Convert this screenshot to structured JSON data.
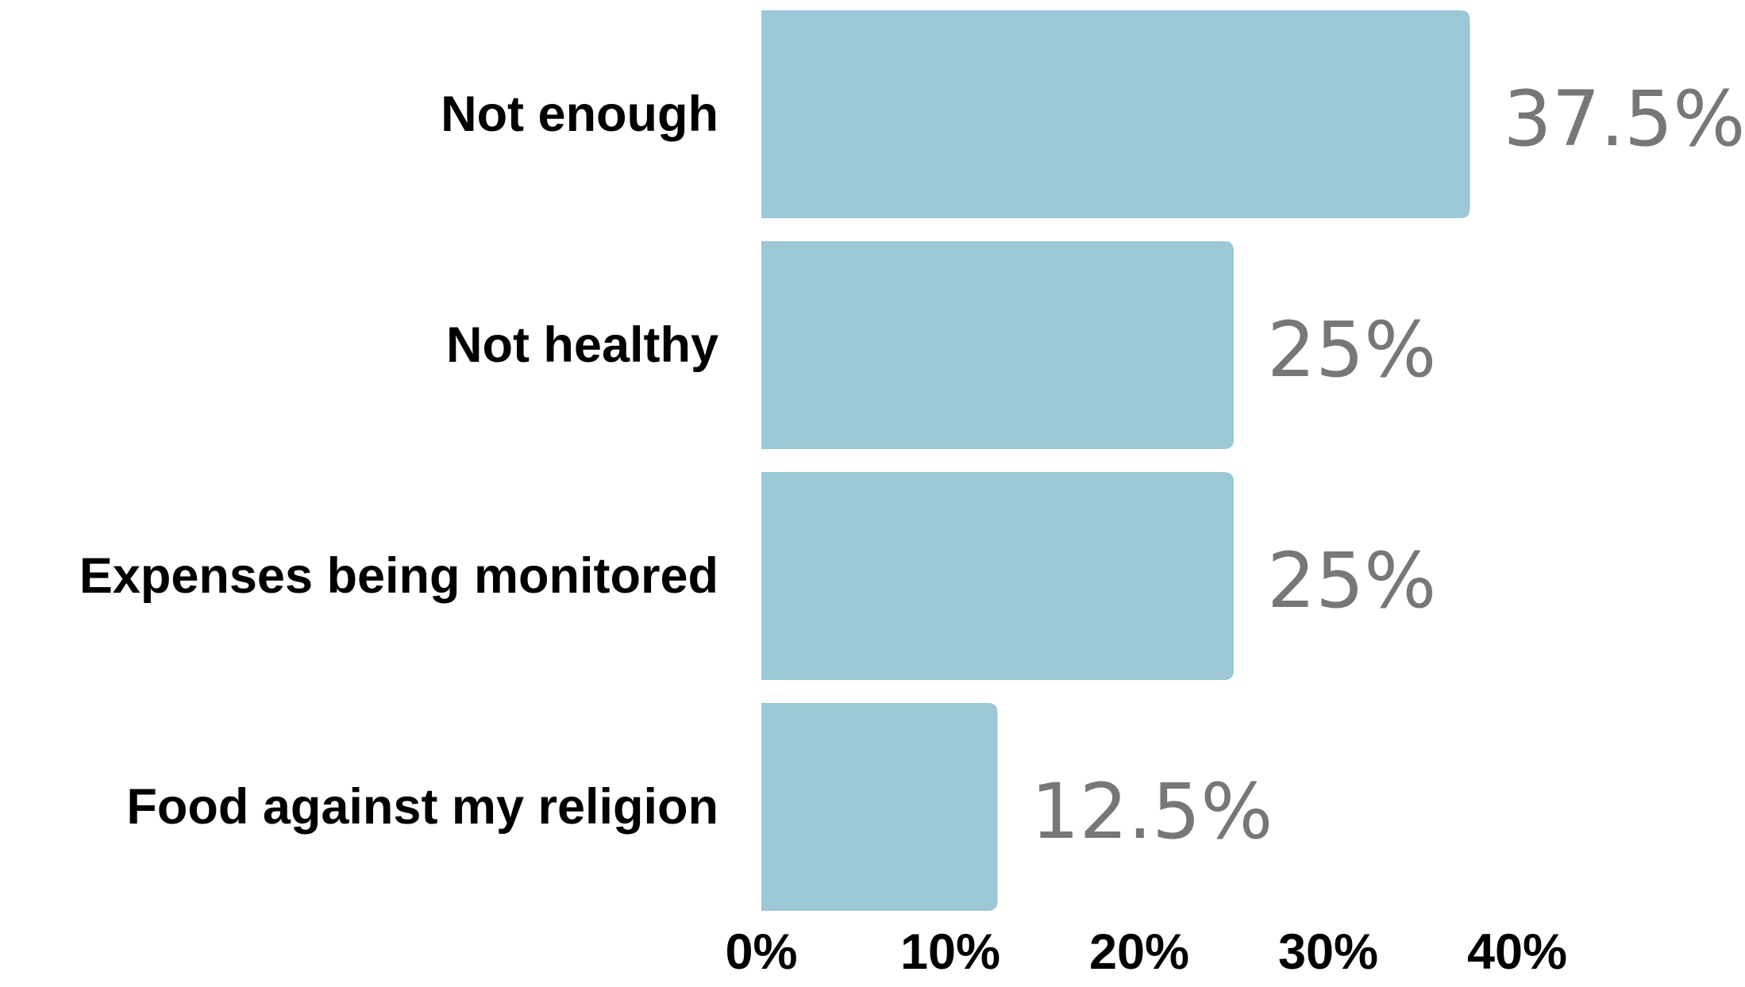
{
  "chart_data": {
    "type": "bar",
    "orientation": "horizontal",
    "categories": [
      "Not enough",
      "Not healthy",
      "Expenses being monitored",
      "Food against my religion"
    ],
    "values": [
      37.5,
      25,
      25,
      12.5
    ],
    "value_labels": [
      "37.5%",
      "25%",
      "25%",
      "12.5%"
    ],
    "x_ticks": [
      "0%",
      "10%",
      "20%",
      "30%",
      "40%"
    ],
    "xlim": [
      0,
      40
    ],
    "title": "",
    "xlabel": "",
    "ylabel": "",
    "grid": false,
    "legend": "none",
    "colors": {
      "bar": "#9bc7d7",
      "value_label": "#777777",
      "category_label": "#000000",
      "tick_label": "#000000"
    }
  }
}
